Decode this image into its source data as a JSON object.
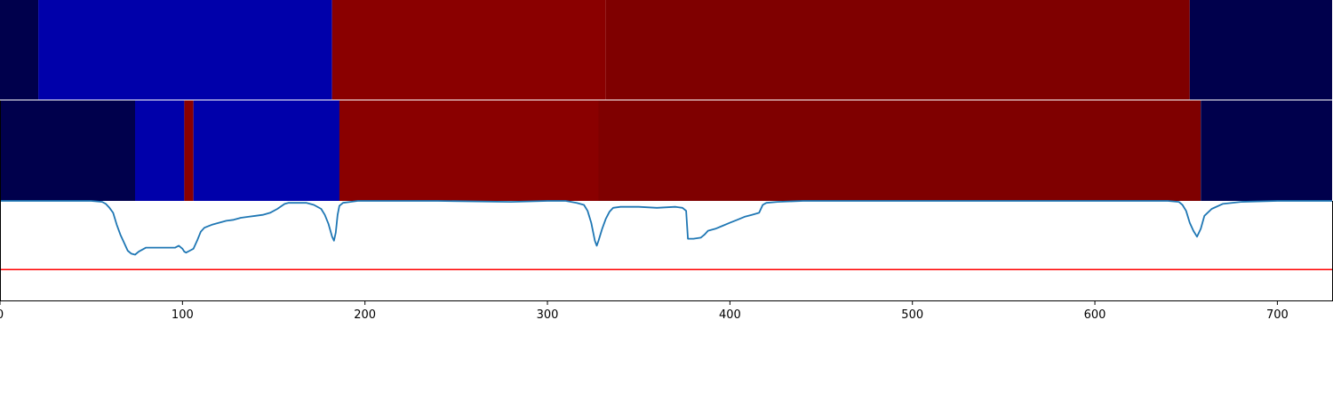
{
  "chart_data": [
    {
      "type": "heatmap",
      "title": "",
      "xlabel": "",
      "ylabel": "",
      "xlim": [
        0,
        730
      ],
      "segments": [
        {
          "start": 0,
          "end": 21,
          "color": "#00004c"
        },
        {
          "start": 21,
          "end": 182,
          "color": "#0000aa"
        },
        {
          "start": 182,
          "end": 332,
          "color": "#8a0000"
        },
        {
          "start": 332,
          "end": 652,
          "color": "#7f0000"
        },
        {
          "start": 652,
          "end": 730,
          "color": "#00004c"
        }
      ]
    },
    {
      "type": "heatmap",
      "title": "",
      "xlabel": "",
      "ylabel": "",
      "xlim": [
        0,
        730
      ],
      "segments": [
        {
          "start": 0,
          "end": 74,
          "color": "#00004c"
        },
        {
          "start": 74,
          "end": 101,
          "color": "#0000aa"
        },
        {
          "start": 101,
          "end": 106,
          "color": "#8a0000"
        },
        {
          "start": 106,
          "end": 186,
          "color": "#0000aa"
        },
        {
          "start": 186,
          "end": 328,
          "color": "#8a0000"
        },
        {
          "start": 328,
          "end": 658,
          "color": "#7f0000"
        },
        {
          "start": 658,
          "end": 730,
          "color": "#00004c"
        }
      ]
    },
    {
      "type": "line",
      "title": "",
      "xlabel": "",
      "ylabel": "",
      "xlim": [
        0,
        730
      ],
      "ylim": [
        0,
        1
      ],
      "xticks": [
        0,
        100,
        200,
        300,
        400,
        500,
        600,
        700
      ],
      "xtick_labels": [
        "0",
        "100",
        "200",
        "300",
        "400",
        "500",
        "600",
        "700"
      ],
      "series": [
        {
          "color": "#1f77b4",
          "x": [
            0,
            50,
            56,
            58,
            60,
            62,
            64,
            66,
            68,
            70,
            72,
            74,
            76,
            80,
            84,
            88,
            92,
            96,
            98,
            100,
            101,
            102,
            104,
            106,
            108,
            110,
            112,
            116,
            120,
            124,
            128,
            132,
            136,
            140,
            144,
            148,
            152,
            156,
            158,
            160,
            164,
            168,
            172,
            176,
            178,
            180,
            182,
            183,
            184,
            185,
            186,
            188,
            192,
            196,
            200,
            240,
            280,
            300,
            310,
            316,
            320,
            322,
            324,
            326,
            327,
            328,
            330,
            332,
            334,
            336,
            340,
            350,
            360,
            370,
            374,
            376,
            377,
            380,
            384,
            386,
            388,
            392,
            396,
            400,
            404,
            408,
            412,
            416,
            418,
            420,
            426,
            440,
            460,
            500,
            560,
            620,
            640,
            646,
            648,
            650,
            652,
            654,
            656,
            658,
            660,
            664,
            670,
            680,
            700,
            730
          ],
          "y": [
            1.0,
            1.0,
            0.99,
            0.97,
            0.93,
            0.88,
            0.76,
            0.66,
            0.58,
            0.5,
            0.47,
            0.46,
            0.49,
            0.53,
            0.53,
            0.53,
            0.53,
            0.53,
            0.55,
            0.52,
            0.49,
            0.48,
            0.5,
            0.52,
            0.6,
            0.69,
            0.73,
            0.76,
            0.78,
            0.8,
            0.81,
            0.83,
            0.84,
            0.85,
            0.86,
            0.88,
            0.92,
            0.97,
            0.98,
            0.98,
            0.98,
            0.98,
            0.96,
            0.92,
            0.86,
            0.77,
            0.64,
            0.6,
            0.68,
            0.86,
            0.95,
            0.98,
            0.99,
            1.0,
            1.0,
            1.0,
            0.99,
            1.0,
            1.0,
            0.98,
            0.96,
            0.9,
            0.78,
            0.6,
            0.55,
            0.6,
            0.72,
            0.82,
            0.89,
            0.93,
            0.94,
            0.94,
            0.93,
            0.94,
            0.93,
            0.9,
            0.62,
            0.62,
            0.63,
            0.66,
            0.7,
            0.72,
            0.75,
            0.78,
            0.81,
            0.84,
            0.86,
            0.88,
            0.96,
            0.98,
            0.99,
            1.0,
            1.0,
            1.0,
            1.0,
            1.0,
            1.0,
            0.99,
            0.96,
            0.9,
            0.78,
            0.7,
            0.64,
            0.72,
            0.85,
            0.92,
            0.97,
            0.99,
            1.0,
            1.0
          ],
          "label": ""
        },
        {
          "color": "#ff0000",
          "x": [
            0,
            730
          ],
          "y": [
            0.31,
            0.31
          ],
          "label": ""
        }
      ],
      "grid": false,
      "legend": "none"
    }
  ]
}
